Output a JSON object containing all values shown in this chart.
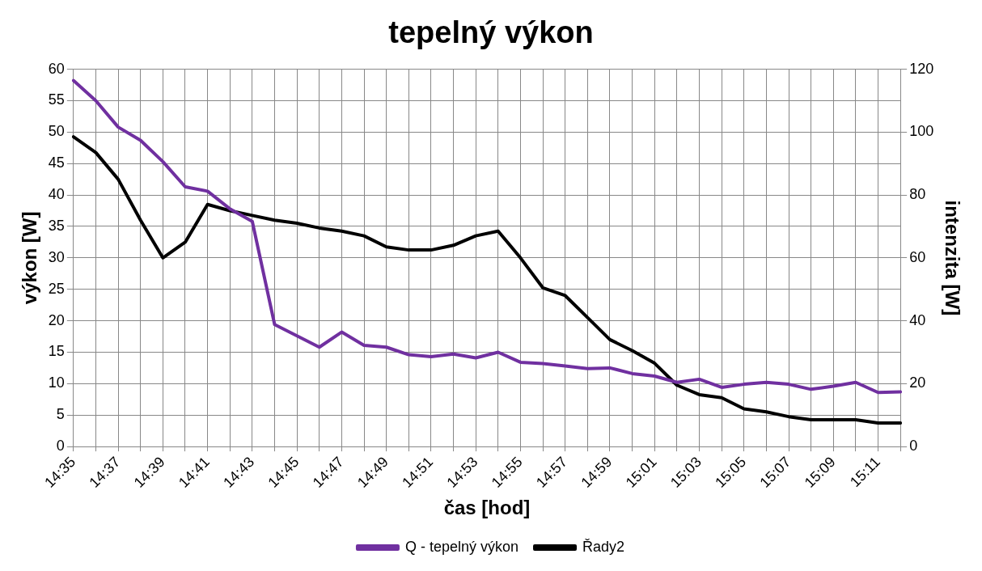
{
  "chart_data": {
    "type": "line",
    "title": "tepelný výkon",
    "xlabel": "čas [hod]",
    "ylabel": "výkon [W]",
    "y2label": "intenzita [W]",
    "categories": [
      "14:35",
      null,
      "14:37",
      null,
      "14:39",
      null,
      "14:41",
      null,
      "14:43",
      null,
      "14:45",
      null,
      "14:47",
      null,
      "14:49",
      null,
      "14:51",
      null,
      "14:53",
      null,
      "14:55",
      null,
      "14:57",
      null,
      "14:59",
      null,
      "15:01",
      null,
      "15:03",
      null,
      "15:05",
      null,
      "15:07",
      null,
      "15:09",
      null,
      "15:11",
      null
    ],
    "series": [
      {
        "name": "Q - tepelný výkon",
        "color": "#7030a0",
        "values": [
          58.2,
          55,
          50.8,
          48.7,
          45.3,
          41.3,
          40.6,
          37.8,
          35.8,
          19.4,
          17.6,
          15.8,
          18.2,
          16.1,
          15.8,
          14.6,
          14.3,
          14.7,
          14.1,
          15.0,
          13.4,
          13.2,
          12.8,
          12.4,
          12.5,
          11.6,
          11.2,
          10.2,
          10.7,
          9.4,
          9.9,
          10.2,
          9.9,
          9.1,
          9.6,
          10.2,
          8.6,
          8.7
        ]
      },
      {
        "name": "Řady2",
        "color": "#000000",
        "axis": "y2",
        "values": [
          98.5,
          93.5,
          85,
          72,
          60,
          65,
          77,
          75,
          73.5,
          72,
          71,
          69.5,
          68.5,
          67,
          63.5,
          62.5,
          62.5,
          64,
          67,
          68.5,
          60,
          50.5,
          48,
          41,
          34,
          30.5,
          26.5,
          19.5,
          16.5,
          15.5,
          12,
          11,
          9.5,
          8.5,
          8.5,
          8.5,
          7.5,
          7.5
        ]
      }
    ],
    "ylim": [
      0,
      60
    ],
    "yticks": [
      0,
      5,
      10,
      15,
      20,
      25,
      30,
      35,
      40,
      45,
      50,
      55,
      60
    ],
    "y2lim": [
      0,
      120
    ],
    "y2ticks": [
      0,
      20,
      40,
      60,
      80,
      100,
      120
    ],
    "grid": true,
    "legend": "bottom",
    "marker": "none",
    "line_style": "solid"
  }
}
